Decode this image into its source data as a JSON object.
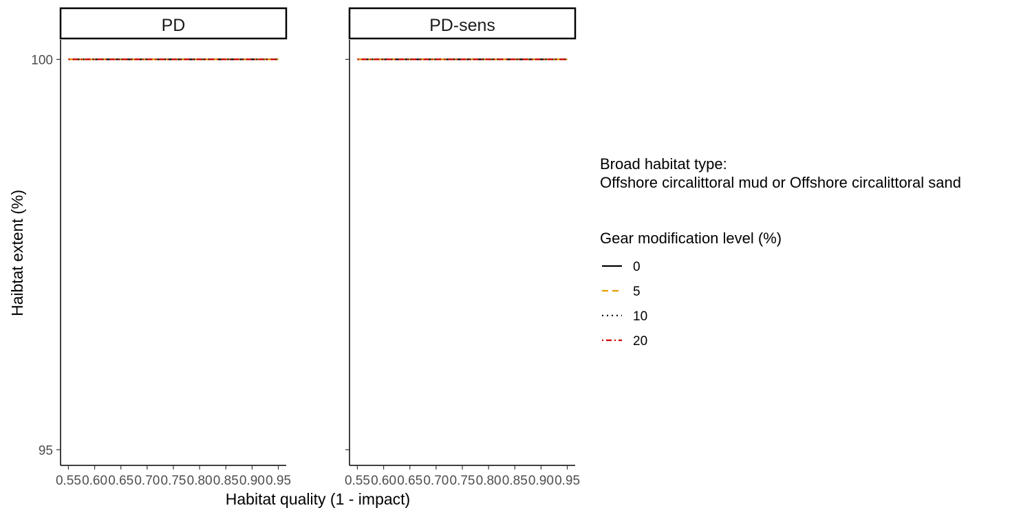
{
  "chart_data": {
    "type": "line",
    "xlabel": "Habitat quality (1 - impact)",
    "ylabel": "Haibtat extent (%)",
    "ylim": [
      94.8,
      100.25
    ],
    "xlim": [
      0.535,
      0.965
    ],
    "yticks": [
      95,
      100
    ],
    "xticks": [
      0.55,
      0.6,
      0.65,
      0.7,
      0.75,
      0.8,
      0.85,
      0.9,
      0.95
    ],
    "xtick_labels": [
      "0.55",
      "0.60",
      "0.65",
      "0.70",
      "0.75",
      "0.80",
      "0.85",
      "0.90",
      "0.95"
    ],
    "grid": false,
    "legend_position": "right",
    "facets": [
      {
        "label": "PD",
        "series": [
          {
            "name": "0",
            "x": [
              0.55,
              0.95
            ],
            "y": [
              100,
              100
            ]
          },
          {
            "name": "5",
            "x": [
              0.55,
              0.95
            ],
            "y": [
              100,
              100
            ]
          },
          {
            "name": "10",
            "x": [
              0.55,
              0.95
            ],
            "y": [
              100,
              100
            ]
          },
          {
            "name": "20",
            "x": [
              0.55,
              0.95
            ],
            "y": [
              100,
              100
            ]
          }
        ]
      },
      {
        "label": "PD-sens",
        "series": [
          {
            "name": "0",
            "x": [
              0.55,
              0.95
            ],
            "y": [
              100,
              100
            ]
          },
          {
            "name": "5",
            "x": [
              0.55,
              0.95
            ],
            "y": [
              100,
              100
            ]
          },
          {
            "name": "10",
            "x": [
              0.55,
              0.95
            ],
            "y": [
              100,
              100
            ]
          },
          {
            "name": "20",
            "x": [
              0.55,
              0.95
            ],
            "y": [
              100,
              100
            ]
          }
        ]
      }
    ],
    "legend": {
      "habitat_title": "Broad habitat type:",
      "habitat_value": "Offshore circalittoral mud or Offshore circalittoral sand",
      "gear_title": "Gear modification level (%)",
      "entries": [
        {
          "label": "0",
          "color": "#000000",
          "dash": "solid"
        },
        {
          "label": "5",
          "color": "#E69F00",
          "dash": "dashed"
        },
        {
          "label": "10",
          "color": "#000000",
          "dash": "dotted"
        },
        {
          "label": "20",
          "color": "#D00000",
          "dash": "dotdash"
        }
      ]
    }
  }
}
